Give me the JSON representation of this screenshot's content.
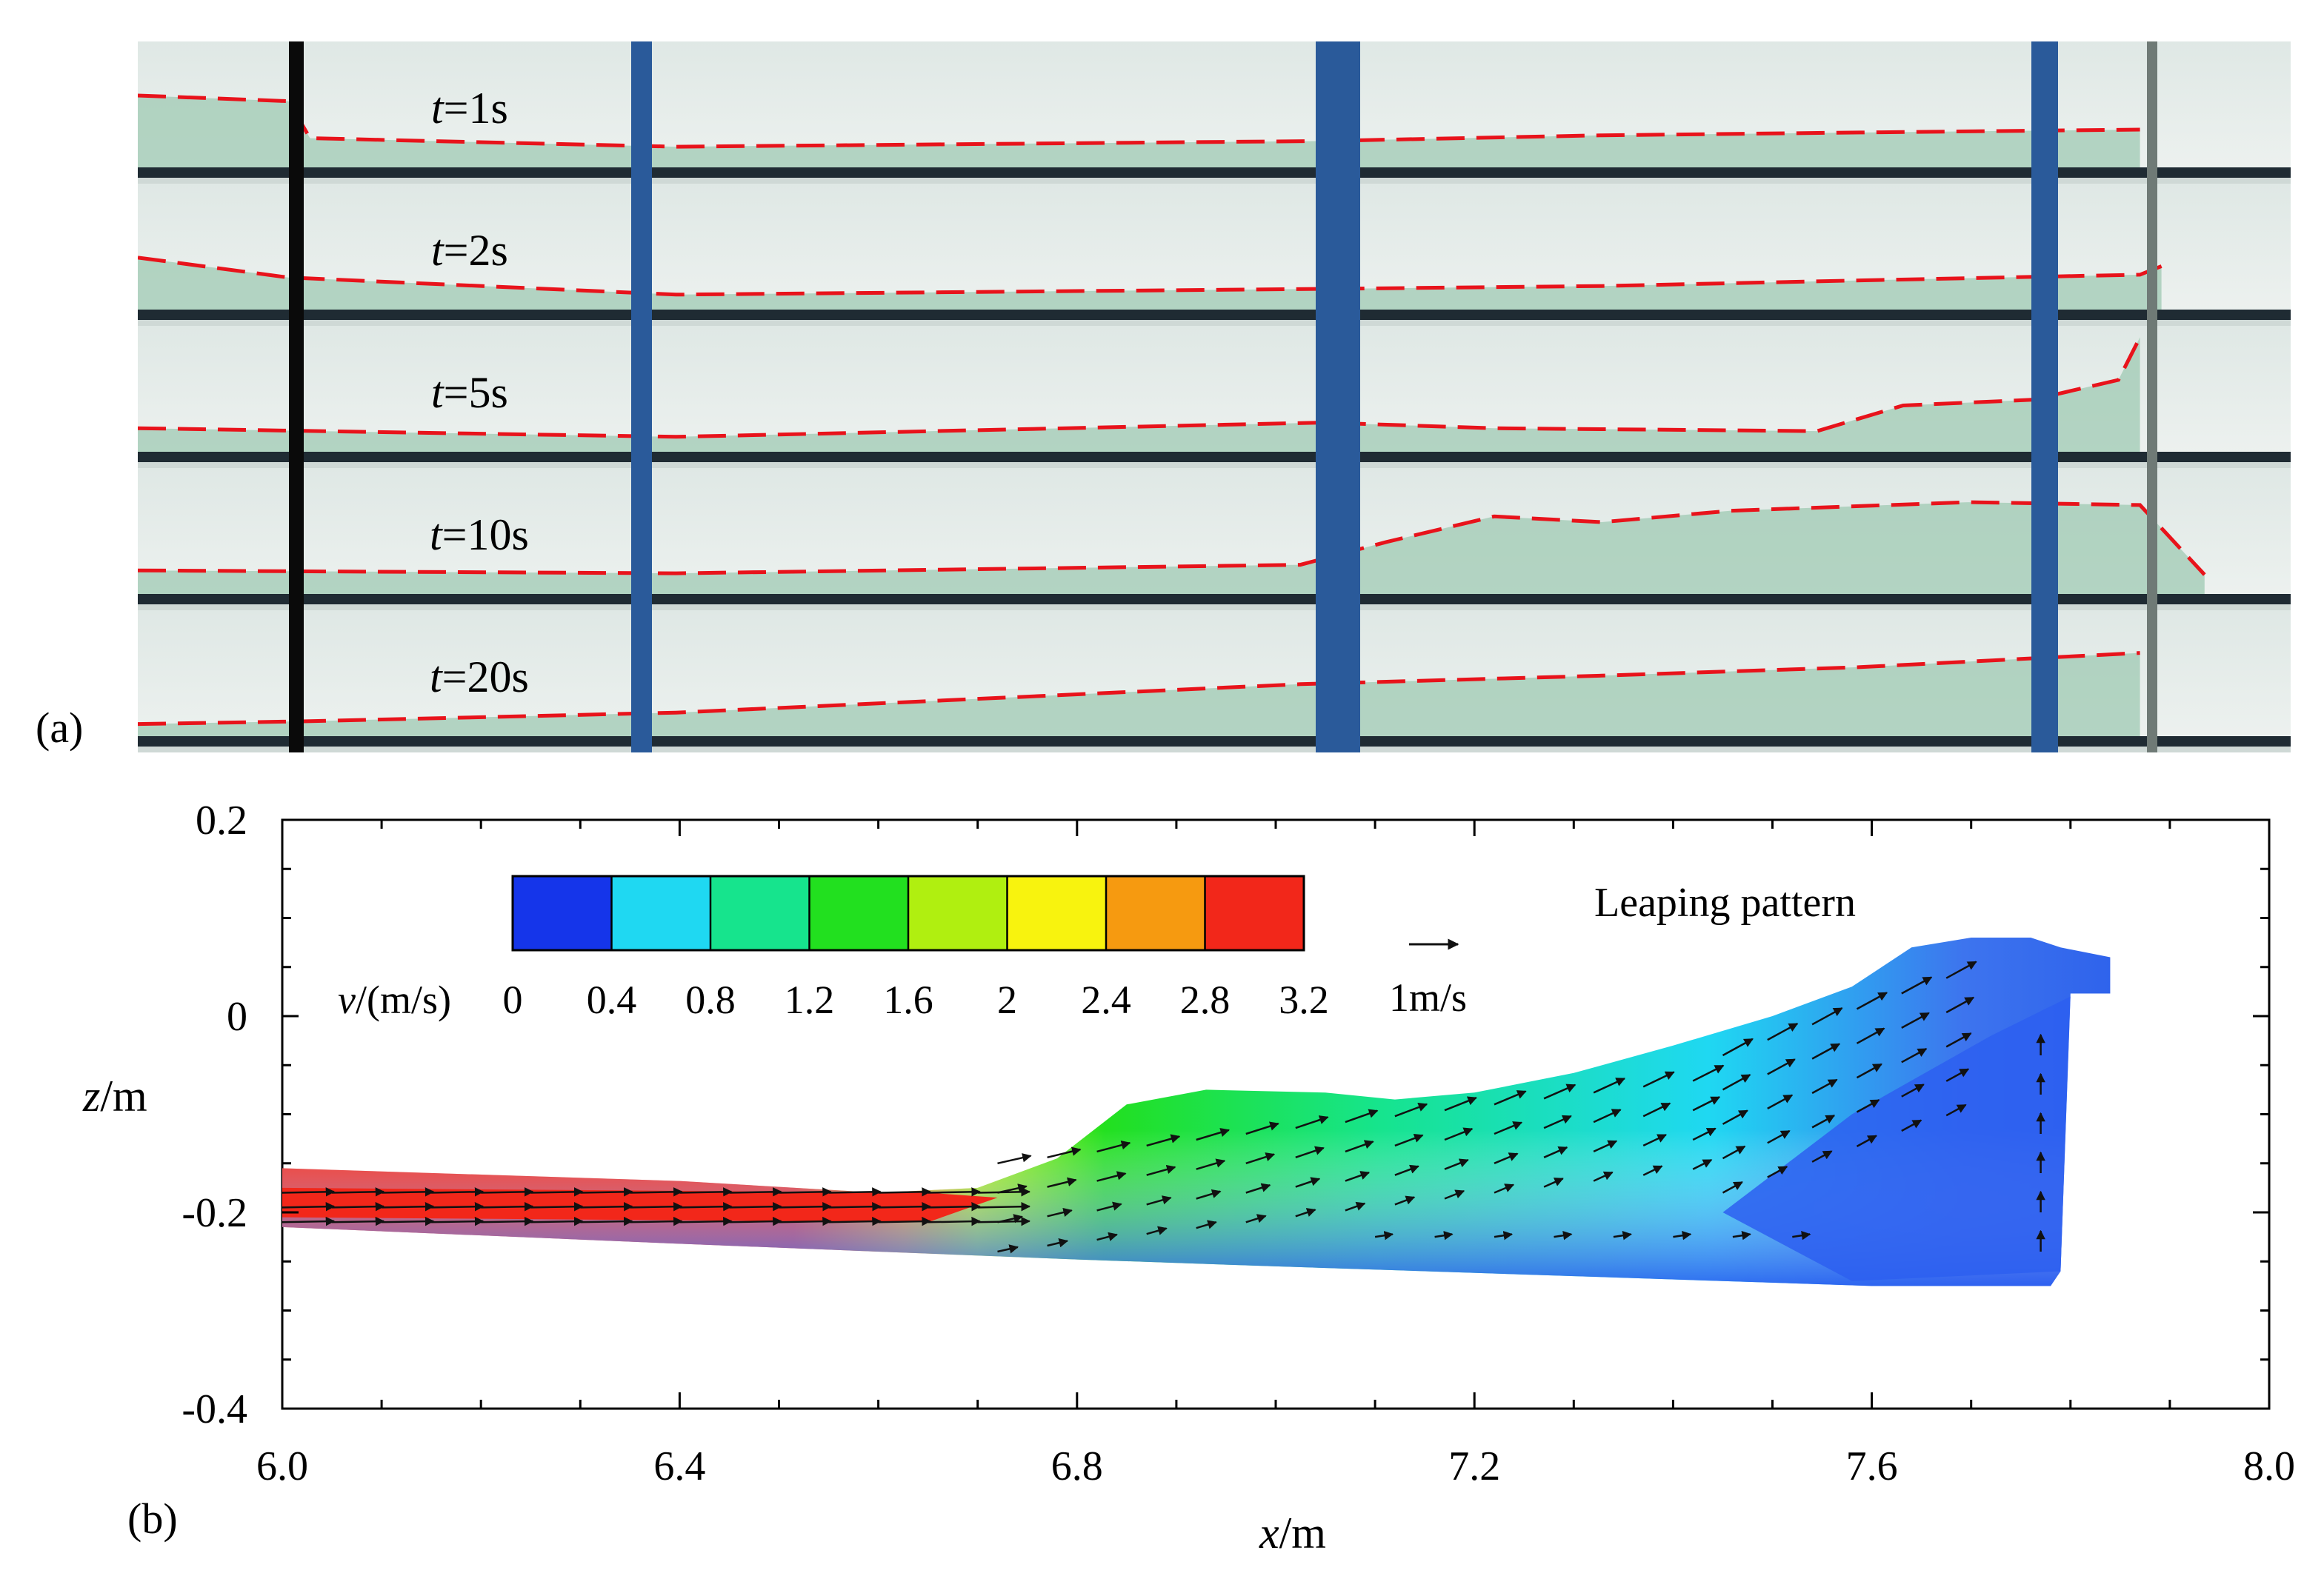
{
  "panel_a": {
    "label": "(a)",
    "snapshots": [
      {
        "t_prefix": "t",
        "t_value": "=1s"
      },
      {
        "t_prefix": "t",
        "t_value": "=2s"
      },
      {
        "t_prefix": "t",
        "t_value": "=5s"
      },
      {
        "t_prefix": "t",
        "t_value": "=10s"
      },
      {
        "t_prefix": "t",
        "t_value": "=20s"
      }
    ],
    "free_surface_color": "#e8131b",
    "water_color": "#9fc9b3",
    "wall_color": "#e8eeec",
    "column_color": "#2a5a9a"
  },
  "panel_b": {
    "label": "(b)",
    "annotation": "Leaping pattern",
    "reference_vector_label": "1m/s",
    "colorbar": {
      "var_symbol": "v",
      "var_units": "/(m/s)",
      "ticks": [
        "0",
        "0.4",
        "0.8",
        "1.2",
        "1.6",
        "2",
        "2.4",
        "2.8",
        "3.2"
      ],
      "colors": [
        "#1535ea",
        "#1fd8f2",
        "#16e48d",
        "#22e01f",
        "#b0ef10",
        "#f8f30e",
        "#f69a10",
        "#f2271a"
      ]
    }
  },
  "chart_data": {
    "type": "contour-vector",
    "title": "",
    "xlabel": "x/m",
    "ylabel": "z/m",
    "xlim": [
      6.0,
      8.0
    ],
    "ylim": [
      -0.4,
      0.2
    ],
    "x_ticks": [
      "6.0",
      "6.4",
      "6.8",
      "7.2",
      "7.6",
      "8.0"
    ],
    "y_ticks": [
      "0.2",
      "0",
      "-0.2",
      "-0.4"
    ],
    "x_tick_values": [
      6.0,
      6.4,
      6.8,
      7.2,
      7.6,
      8.0
    ],
    "y_tick_values": [
      0.2,
      0.0,
      -0.2,
      -0.4
    ],
    "x_minor_step": 0.1,
    "y_minor_step": 0.05,
    "flow_top_surface": [
      [
        6.0,
        -0.155
      ],
      [
        6.4,
        -0.168
      ],
      [
        6.6,
        -0.18
      ],
      [
        6.7,
        -0.175
      ],
      [
        6.78,
        -0.145
      ],
      [
        6.85,
        -0.09
      ],
      [
        6.93,
        -0.075
      ],
      [
        7.05,
        -0.078
      ],
      [
        7.12,
        -0.085
      ],
      [
        7.2,
        -0.078
      ],
      [
        7.3,
        -0.058
      ],
      [
        7.4,
        -0.03
      ],
      [
        7.5,
        0.0
      ],
      [
        7.58,
        0.03
      ],
      [
        7.64,
        0.07
      ],
      [
        7.7,
        0.08
      ],
      [
        7.76,
        0.08
      ],
      [
        7.79,
        0.07
      ],
      [
        7.84,
        0.06
      ],
      [
        7.84,
        0.023
      ],
      [
        7.8,
        0.023
      ]
    ],
    "flow_bottom_surface": [
      [
        7.79,
        -0.26
      ],
      [
        7.78,
        -0.275
      ],
      [
        7.6,
        -0.275
      ],
      [
        7.3,
        -0.265
      ],
      [
        7.0,
        -0.255
      ],
      [
        6.8,
        -0.248
      ],
      [
        6.4,
        -0.232
      ],
      [
        6.0,
        -0.215
      ]
    ],
    "velocity_regions": [
      {
        "x": [
          6.0,
          6.65
        ],
        "z_center": -0.19,
        "speed": 3.1
      },
      {
        "x": [
          6.65,
          6.9
        ],
        "z_center": -0.18,
        "speed": 2.2
      },
      {
        "x": [
          6.9,
          7.4
        ],
        "z_center": -0.12,
        "speed": 1.4
      },
      {
        "x": [
          7.4,
          7.7
        ],
        "z_center": -0.02,
        "speed": 1.2
      },
      {
        "x": [
          7.6,
          7.8
        ],
        "z_center": -0.18,
        "speed": 0.2
      }
    ]
  }
}
